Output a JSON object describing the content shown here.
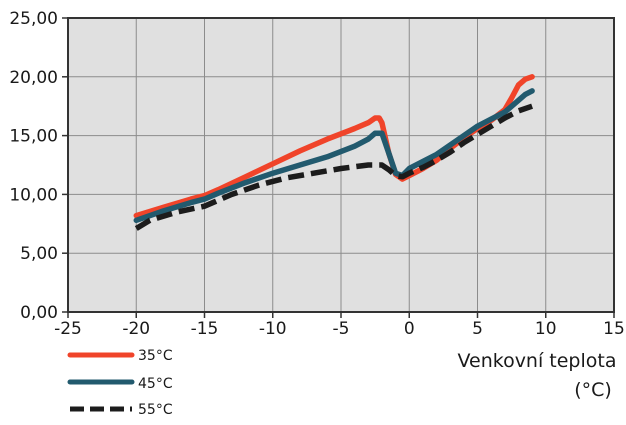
{
  "chart_data": {
    "type": "line",
    "xlabel_line1": "Venkovní teplota",
    "xlabel_line2": "(°C)",
    "ylabel": "",
    "xlim": [
      -25,
      15
    ],
    "ylim": [
      0,
      25
    ],
    "x_ticks": [
      -25,
      -20,
      -15,
      -10,
      -5,
      0,
      5,
      10,
      15
    ],
    "x_tick_labels": [
      "-25",
      "-20",
      "-15",
      "-10",
      "-5",
      "0",
      "5",
      "10",
      "15"
    ],
    "y_ticks": [
      0,
      5,
      10,
      15,
      20,
      25
    ],
    "y_tick_labels": [
      "0,00",
      "5,00",
      "10,00",
      "15,00",
      "20,00",
      "25,00"
    ],
    "grid": true,
    "plot_background": "#e0e0e0",
    "legend_placement": "bottom-left",
    "series": [
      {
        "name": "35°C",
        "color": "#f0442a",
        "dash": "solid",
        "x": [
          -20,
          -18,
          -16,
          -15,
          -14,
          -12,
          -10,
          -8,
          -6,
          -4,
          -3,
          -2.5,
          -2.2,
          -2,
          -1.5,
          -1,
          -0.5,
          0,
          1,
          2,
          3,
          4,
          5,
          6,
          7,
          7.5,
          8,
          8.5,
          9
        ],
        "y": [
          8.2,
          8.9,
          9.6,
          9.9,
          10.4,
          11.5,
          12.6,
          13.7,
          14.7,
          15.6,
          16.1,
          16.5,
          16.5,
          16.1,
          13.5,
          11.7,
          11.3,
          11.6,
          12.2,
          12.9,
          13.9,
          14.8,
          15.6,
          16.3,
          17.2,
          18.2,
          19.3,
          19.8,
          20.0
        ]
      },
      {
        "name": "45°C",
        "color": "#225a6e",
        "dash": "solid",
        "x": [
          -20,
          -18,
          -16,
          -15,
          -14,
          -12,
          -10,
          -8,
          -6,
          -4,
          -3,
          -2.5,
          -2,
          -1.5,
          -1,
          -0.5,
          0,
          1,
          2,
          3,
          4,
          5,
          6,
          7,
          8,
          8.5,
          9
        ],
        "y": [
          7.8,
          8.6,
          9.3,
          9.6,
          10.1,
          11.0,
          11.8,
          12.5,
          13.2,
          14.1,
          14.7,
          15.2,
          15.2,
          13.5,
          11.8,
          11.6,
          12.2,
          12.8,
          13.4,
          14.2,
          15.0,
          15.8,
          16.4,
          17.0,
          18.0,
          18.5,
          18.8
        ]
      },
      {
        "name": "55°C",
        "color": "#1c1c1c",
        "dash": "dashed",
        "x": [
          -20,
          -19,
          -17,
          -15,
          -13,
          -11,
          -9,
          -7,
          -5,
          -3,
          -2,
          -1.5,
          -1,
          -0.5,
          0,
          1,
          2,
          3,
          4,
          5,
          6,
          7,
          8,
          9
        ],
        "y": [
          7.1,
          7.8,
          8.5,
          9.0,
          10.0,
          10.8,
          11.4,
          11.8,
          12.2,
          12.5,
          12.5,
          12.1,
          11.6,
          11.5,
          11.8,
          12.3,
          12.9,
          13.6,
          14.4,
          15.1,
          15.8,
          16.5,
          17.1,
          17.5
        ]
      }
    ]
  }
}
